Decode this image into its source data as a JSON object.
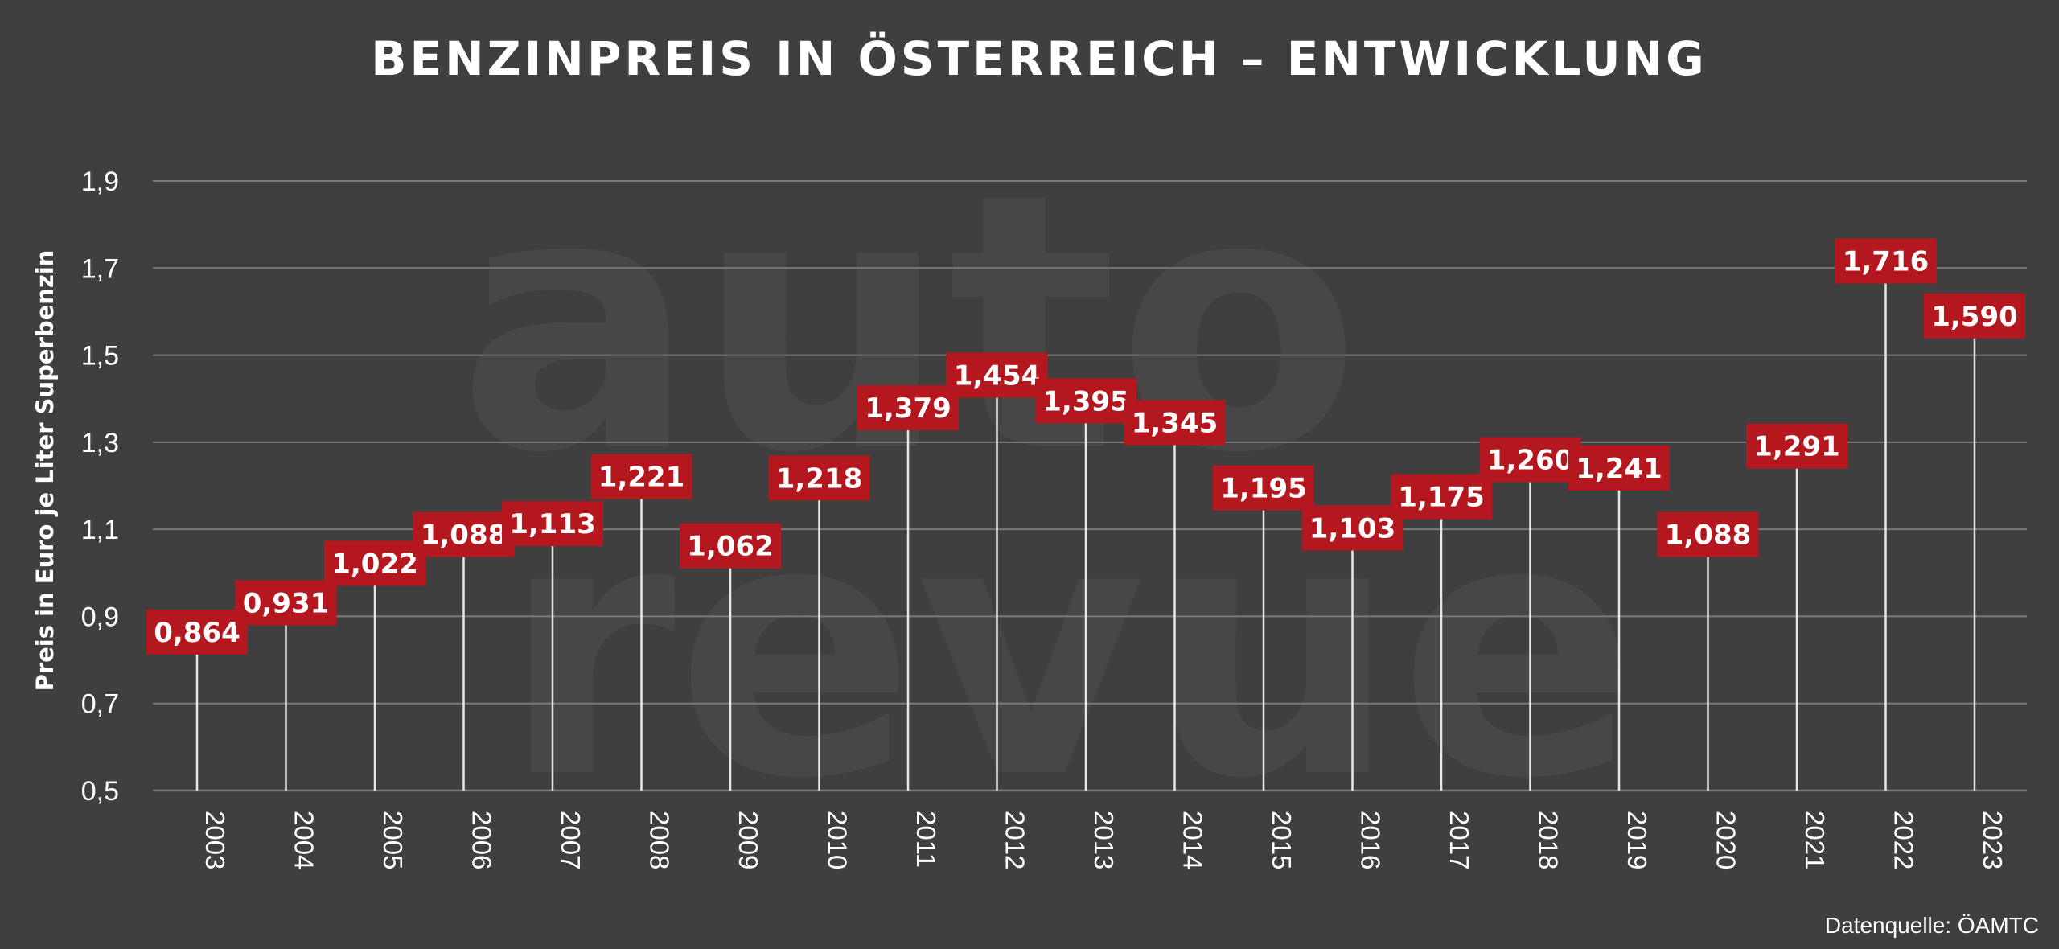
{
  "colors": {
    "background": "#3f3f3f",
    "label_box": "#b5171e",
    "grid": "#7a7a7a",
    "stem": "#e8e8e8"
  },
  "watermark": {
    "line1": "auto",
    "line2": "revue"
  },
  "source_note": "Datenquelle: ÖAMTC",
  "chart_data": {
    "type": "bar",
    "title": "BENZINPREIS IN ÖSTERREICH – ENTWICKLUNG",
    "xlabel": "",
    "ylabel": "Preis in Euro je Liter Superbenzin",
    "ylim": [
      0.5,
      1.9
    ],
    "yticks": [
      0.5,
      0.7,
      0.9,
      1.1,
      1.3,
      1.5,
      1.7,
      1.9
    ],
    "ytick_labels": [
      "0,5",
      "0,7",
      "0,9",
      "1,1",
      "1,3",
      "1,5",
      "1,7",
      "1,9"
    ],
    "grid": true,
    "categories": [
      "2003",
      "2004",
      "2005",
      "2006",
      "2007",
      "2008",
      "2009",
      "2010",
      "2011",
      "2012",
      "2013",
      "2014",
      "2015",
      "2016",
      "2017",
      "2018",
      "2019",
      "2020",
      "2021",
      "2022",
      "2023"
    ],
    "values": [
      0.864,
      0.931,
      1.022,
      1.088,
      1.113,
      1.221,
      1.062,
      1.218,
      1.379,
      1.454,
      1.395,
      1.345,
      1.195,
      1.103,
      1.175,
      1.26,
      1.241,
      1.088,
      1.291,
      1.716,
      1.59
    ],
    "value_labels": [
      "0,864",
      "0,931",
      "1,022",
      "1,088",
      "1,113",
      "1,221",
      "1,062",
      "1,218",
      "1,379",
      "1,454",
      "1,395",
      "1,345",
      "1,195",
      "1,103",
      "1,175",
      "1,260",
      "1,241",
      "1,088",
      "1,291",
      "1,716",
      "1,590"
    ]
  }
}
